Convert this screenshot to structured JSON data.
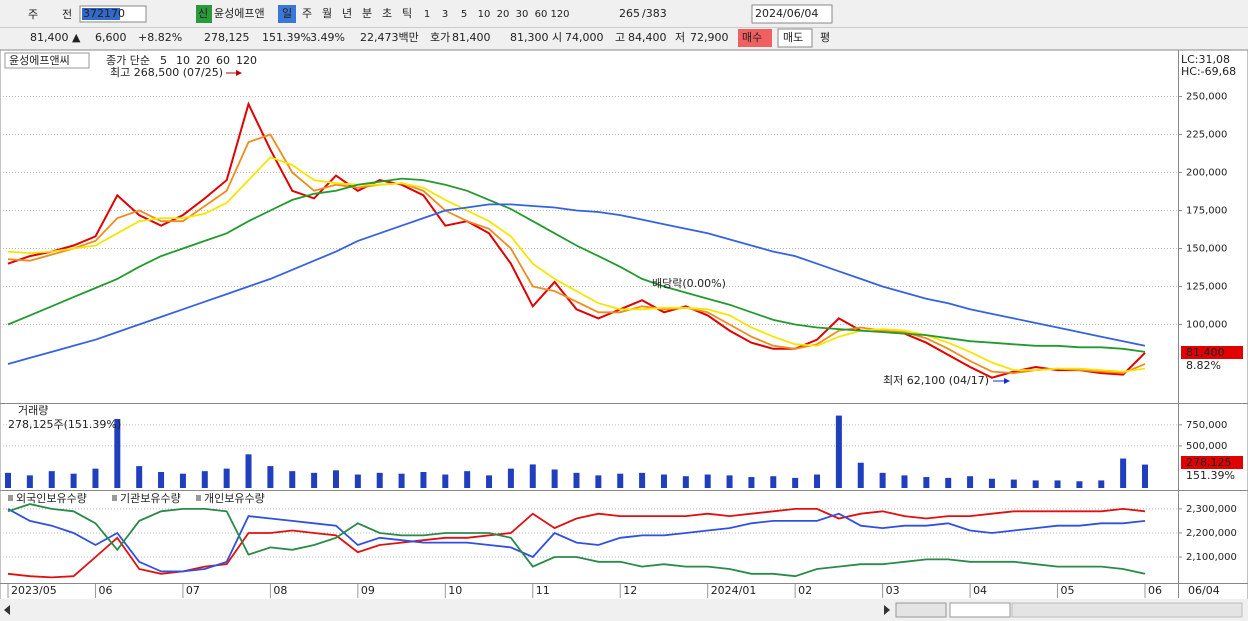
{
  "toolbar": {
    "period": "주",
    "prev": "전",
    "code": "372170",
    "new_badge": "신",
    "name": "윤성에프앤",
    "intervals": [
      "일",
      "주",
      "월",
      "년",
      "분",
      "초",
      "틱"
    ],
    "minutes": [
      "1",
      "3",
      "5",
      "10",
      "20",
      "30",
      "60",
      "120"
    ],
    "count": "265",
    "total": "/383",
    "date": "2024/06/04"
  },
  "quote": {
    "price": "81,400 ▲",
    "change": "6,600",
    "change_pct": "+8.82%",
    "volume": "278,125",
    "volume_pct": "151.39%",
    "turnover": "3.49%",
    "amount": "22,473백만",
    "ask_label": "호가",
    "ask": "81,400",
    "bid": "81,300",
    "open_label": "시",
    "open": "74,000",
    "high_label": "고",
    "high": "84,400",
    "low_label": "저",
    "low": "72,900",
    "buy": "매수",
    "sell": "매도",
    "avg": "평"
  },
  "x_end_label": "06/04",
  "chart_data": [
    {
      "type": "line",
      "title": "윤성에프앤씨",
      "legend_prefix": "종가 단순",
      "categories": [
        "2023/05",
        null,
        null,
        null,
        "06",
        null,
        null,
        null,
        "07",
        null,
        null,
        null,
        "08",
        null,
        null,
        null,
        "09",
        null,
        null,
        null,
        "10",
        null,
        null,
        null,
        "11",
        null,
        null,
        null,
        "12",
        null,
        null,
        null,
        "2024/01",
        null,
        null,
        null,
        "02",
        null,
        null,
        null,
        "03",
        null,
        null,
        null,
        "04",
        null,
        null,
        null,
        "05",
        null,
        null,
        null,
        "06"
      ],
      "series": [
        {
          "name": "5",
          "color": "#e00000",
          "values": [
            140000,
            145000,
            148000,
            152000,
            158000,
            185000,
            172000,
            165000,
            172000,
            183000,
            195000,
            245000,
            215000,
            188000,
            183000,
            198000,
            188000,
            195000,
            192000,
            185000,
            165000,
            168000,
            160000,
            140000,
            112000,
            128000,
            110000,
            104000,
            110000,
            116000,
            108000,
            112000,
            106000,
            96000,
            88000,
            84000,
            84000,
            90000,
            104000,
            96000,
            96000,
            94000,
            88000,
            80000,
            72000,
            65000,
            69000,
            72000,
            70000,
            70000,
            68000,
            67000,
            81400
          ]
        },
        {
          "name": "10",
          "color": "#f08c1e",
          "values": [
            143000,
            142000,
            146000,
            150000,
            155000,
            170000,
            175000,
            168000,
            168000,
            178000,
            188000,
            220000,
            225000,
            200000,
            188000,
            192000,
            190000,
            192000,
            193000,
            188000,
            175000,
            168000,
            163000,
            150000,
            125000,
            122000,
            115000,
            108000,
            108000,
            112000,
            110000,
            111000,
            108000,
            100000,
            92000,
            86000,
            84000,
            87000,
            96000,
            98000,
            96000,
            95000,
            91000,
            84000,
            76000,
            69000,
            68000,
            70000,
            71000,
            70000,
            69000,
            68000,
            74000
          ]
        },
        {
          "name": "20",
          "color": "#f5e600",
          "values": [
            148000,
            147000,
            148000,
            150000,
            152000,
            160000,
            168000,
            170000,
            170000,
            173000,
            180000,
            195000,
            210000,
            205000,
            195000,
            193000,
            192000,
            192000,
            193000,
            190000,
            182000,
            175000,
            168000,
            158000,
            140000,
            130000,
            122000,
            114000,
            110000,
            110000,
            111000,
            111000,
            110000,
            106000,
            98000,
            92000,
            87000,
            86000,
            92000,
            96000,
            97000,
            96000,
            93000,
            88000,
            82000,
            75000,
            70000,
            70000,
            71000,
            71000,
            70000,
            69000,
            71000
          ]
        },
        {
          "name": "60",
          "color": "#229a2e",
          "values": [
            100000,
            106000,
            112000,
            118000,
            124000,
            130000,
            138000,
            145000,
            150000,
            155000,
            160000,
            168000,
            175000,
            182000,
            186000,
            188000,
            192000,
            194000,
            196000,
            195000,
            192000,
            188000,
            182000,
            176000,
            168000,
            160000,
            152000,
            145000,
            138000,
            130000,
            125000,
            121000,
            117000,
            113000,
            108000,
            103000,
            100000,
            98000,
            97000,
            96000,
            95000,
            94000,
            93000,
            91000,
            89000,
            88000,
            87000,
            86000,
            86000,
            85000,
            85000,
            84000,
            82000
          ]
        },
        {
          "name": "120",
          "color": "#3563e0",
          "values": [
            74000,
            78000,
            82000,
            86000,
            90000,
            95000,
            100000,
            105000,
            110000,
            115000,
            120000,
            125000,
            130000,
            136000,
            142000,
            148000,
            155000,
            160000,
            165000,
            170000,
            175000,
            177000,
            179000,
            179000,
            178000,
            177000,
            175000,
            174000,
            172000,
            169000,
            166000,
            163000,
            160000,
            156000,
            152000,
            148000,
            145000,
            140000,
            135000,
            130000,
            125000,
            121000,
            117000,
            114000,
            110000,
            107000,
            104000,
            101000,
            98000,
            95000,
            92000,
            89000,
            86000
          ]
        }
      ],
      "ylim": [
        49000,
        278000
      ],
      "yticks": [
        {
          "value": 100000,
          "label": "100,000"
        },
        {
          "value": 125000,
          "label": "125,000"
        },
        {
          "value": 150000,
          "label": "150,000"
        },
        {
          "value": 175000,
          "label": "175,000"
        },
        {
          "value": 200000,
          "label": "200,000"
        },
        {
          "value": 225000,
          "label": "225,000"
        },
        {
          "value": 250000,
          "label": "250,000"
        }
      ],
      "grid": true,
      "annotations": {
        "high": "최고 268,500 (07/25)",
        "low": "최저 62,100 (04/17)",
        "dividend": "배당락(0.00%)"
      },
      "side_labels": {
        "lc": "LC:31,08",
        "hc": "HC:-69,68",
        "last": "81,400",
        "last_pct": "8.82%"
      }
    },
    {
      "type": "bar",
      "title": "거래량",
      "value_label": "278,125주(151.39%)",
      "color": "#1f3fbf",
      "values": [
        180000,
        150000,
        200000,
        170000,
        230000,
        820000,
        260000,
        190000,
        170000,
        200000,
        230000,
        400000,
        260000,
        200000,
        180000,
        210000,
        160000,
        180000,
        170000,
        190000,
        160000,
        200000,
        150000,
        230000,
        280000,
        220000,
        180000,
        150000,
        170000,
        180000,
        160000,
        140000,
        160000,
        150000,
        130000,
        140000,
        120000,
        160000,
        860000,
        300000,
        180000,
        150000,
        130000,
        120000,
        140000,
        110000,
        100000,
        90000,
        90000,
        80000,
        90000,
        350000,
        278125
      ],
      "ylim": [
        0,
        950000
      ],
      "yticks": [
        {
          "value": 500000,
          "label": "500,000"
        },
        {
          "value": 750000,
          "label": "750,000"
        }
      ],
      "grid": true,
      "side_labels": {
        "last": "278,125",
        "last_pct": "151.39%"
      }
    },
    {
      "type": "line",
      "series": [
        {
          "name": "외국인보유수량",
          "color": "#e01010",
          "values": [
            2030000,
            2020000,
            2015000,
            2020000,
            2100000,
            2180000,
            2050000,
            2030000,
            2040000,
            2060000,
            2070000,
            2200000,
            2200000,
            2210000,
            2200000,
            2190000,
            2120000,
            2150000,
            2160000,
            2170000,
            2180000,
            2180000,
            2190000,
            2200000,
            2280000,
            2220000,
            2260000,
            2280000,
            2270000,
            2270000,
            2270000,
            2270000,
            2280000,
            2270000,
            2280000,
            2290000,
            2300000,
            2300000,
            2260000,
            2280000,
            2290000,
            2270000,
            2260000,
            2270000,
            2270000,
            2280000,
            2290000,
            2290000,
            2290000,
            2290000,
            2290000,
            2300000,
            2290000
          ]
        },
        {
          "name": "기관보유수량",
          "color": "#3050e0",
          "values": [
            2300000,
            2250000,
            2230000,
            2200000,
            2150000,
            2200000,
            2080000,
            2040000,
            2040000,
            2050000,
            2080000,
            2270000,
            2260000,
            2250000,
            2240000,
            2230000,
            2150000,
            2180000,
            2170000,
            2160000,
            2160000,
            2160000,
            2150000,
            2140000,
            2100000,
            2200000,
            2160000,
            2150000,
            2180000,
            2190000,
            2190000,
            2200000,
            2210000,
            2220000,
            2240000,
            2250000,
            2250000,
            2250000,
            2280000,
            2230000,
            2220000,
            2230000,
            2230000,
            2240000,
            2210000,
            2200000,
            2210000,
            2220000,
            2230000,
            2230000,
            2240000,
            2240000,
            2250000
          ]
        },
        {
          "name": "개인보유수량",
          "color": "#2a8a4a",
          "values": [
            2290000,
            2320000,
            2300000,
            2290000,
            2240000,
            2130000,
            2250000,
            2290000,
            2300000,
            2300000,
            2290000,
            2110000,
            2140000,
            2130000,
            2150000,
            2180000,
            2240000,
            2200000,
            2190000,
            2190000,
            2200000,
            2200000,
            2200000,
            2180000,
            2060000,
            2100000,
            2100000,
            2080000,
            2080000,
            2060000,
            2070000,
            2060000,
            2060000,
            2050000,
            2030000,
            2030000,
            2020000,
            2050000,
            2060000,
            2070000,
            2070000,
            2080000,
            2090000,
            2090000,
            2080000,
            2080000,
            2080000,
            2070000,
            2060000,
            2060000,
            2060000,
            2050000,
            2030000
          ]
        }
      ],
      "ylim": [
        1996000,
        2362000
      ],
      "yticks": [
        {
          "value": 2100000,
          "label": "2,100,000"
        },
        {
          "value": 2200000,
          "label": "2,200,000"
        },
        {
          "value": 2300000,
          "label": "2,300,000"
        }
      ],
      "grid": true
    }
  ]
}
